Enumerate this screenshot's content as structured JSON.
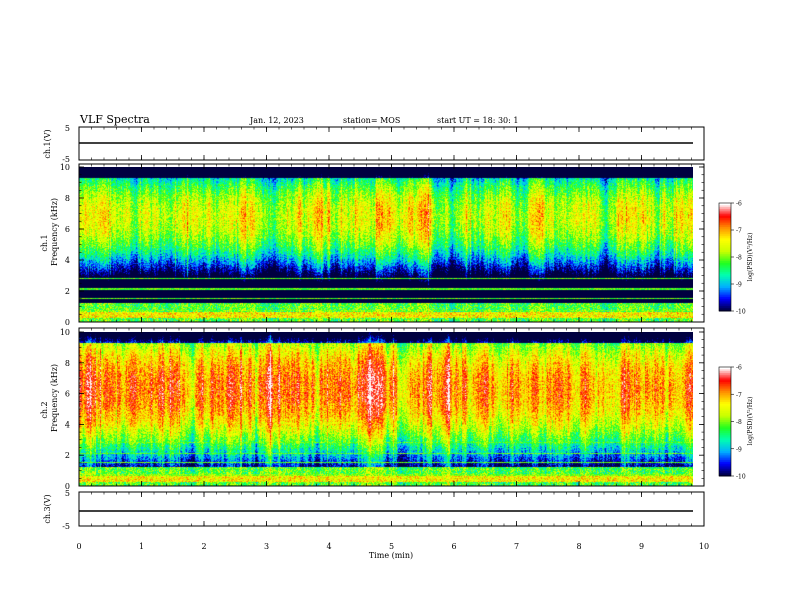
{
  "header": {
    "title": "VLF Spectra",
    "date": "Jan. 12, 2023",
    "station": "station= MOS",
    "start": "start  UT =   18: 30: 1"
  },
  "colors": {
    "spectrum_scale": [
      "#000040",
      "#0000ff",
      "#00b0ff",
      "#00ffb0",
      "#20ff20",
      "#c8ff00",
      "#ffff00",
      "#ff9000",
      "#ff0000",
      "#ffffff"
    ]
  },
  "chart_data": [
    {
      "type": "line",
      "panel": "ch1-waveform",
      "ylabel": "ch.1(V)",
      "ylim": [
        -5,
        5
      ],
      "yticks": [
        "5",
        "-5"
      ],
      "series": [
        {
          "values_description_free": true,
          "x": [
            0,
            9.83
          ],
          "y": [
            0,
            0
          ]
        }
      ]
    },
    {
      "type": "heatmap",
      "panel": "ch1-spectrogram",
      "ylabel_top": "ch.1",
      "ylabel": "Frequency (kHz)",
      "ylim": [
        0,
        10
      ],
      "yticks": [
        "0",
        "2",
        "4",
        "6",
        "8",
        "10"
      ],
      "xlim": [
        0,
        10
      ],
      "colorbar": {
        "label": "log(PSD)(V²/Hz)",
        "range": [
          -10,
          -6
        ],
        "ticks": [
          "-6",
          "-7",
          "-8",
          "-9",
          "-10"
        ]
      },
      "band_center_khz": 6.8,
      "band_halfwidth_khz": 2.2,
      "peak_level": -7.6
    },
    {
      "type": "heatmap",
      "panel": "ch2-spectrogram",
      "ylabel_top": "ch.2",
      "ylabel": "Frequency (kHz)",
      "ylim": [
        0,
        10
      ],
      "yticks": [
        "0",
        "2",
        "4",
        "6",
        "8",
        "10"
      ],
      "xlim": [
        0,
        10
      ],
      "colorbar": {
        "label": "log(PSD)(V²/Hz)",
        "range": [
          -10,
          -6
        ],
        "ticks": [
          "-6",
          "-7",
          "-8",
          "-9",
          "-10"
        ]
      },
      "band_center_khz": 6.3,
      "band_halfwidth_khz": 2.8,
      "peak_level": -6.9
    },
    {
      "type": "line",
      "panel": "ch3-waveform",
      "ylabel": "ch.3(V)",
      "ylim": [
        -5,
        5
      ],
      "yticks": [
        "5",
        "-5"
      ],
      "xlabel": "Time (min)",
      "xlim": [
        0,
        10
      ],
      "xticks": [
        "0",
        "1",
        "2",
        "3",
        "4",
        "5",
        "6",
        "7",
        "8",
        "9",
        "10"
      ],
      "series": [
        {
          "x": [
            0,
            9.83
          ],
          "y": [
            0,
            0
          ]
        }
      ]
    }
  ]
}
